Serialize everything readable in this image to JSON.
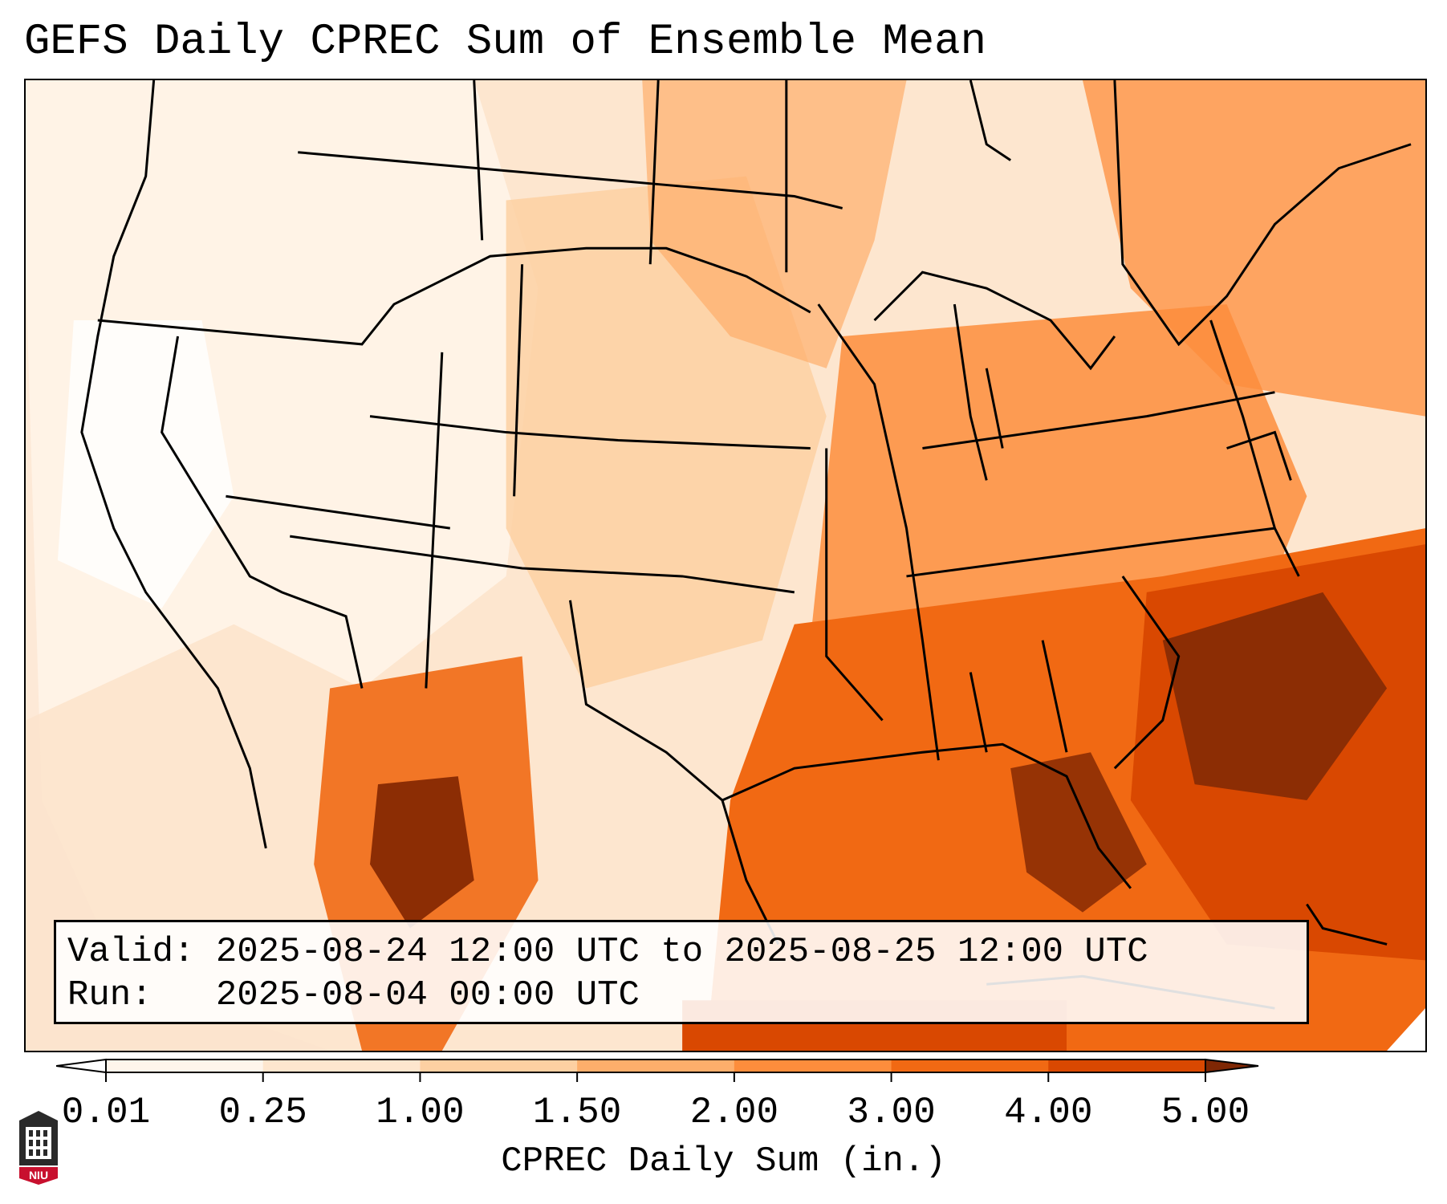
{
  "title": "GEFS Daily CPREC Sum of Ensemble Mean",
  "info": {
    "valid_label": "Valid:",
    "valid_value": "2025-08-24 12:00 UTC to 2025-08-25 12:00 UTC",
    "run_label": "Run:",
    "run_value": "2025-08-04 00:00 UTC"
  },
  "colorbar": {
    "label": "CPREC Daily Sum (in.)",
    "ticks": [
      "0.01",
      "0.25",
      "1.00",
      "1.50",
      "2.00",
      "3.00",
      "4.00",
      "5.00"
    ],
    "colors": [
      "#fff5eb",
      "#fee6ce",
      "#fdd0a2",
      "#fdae6b",
      "#fd8d3c",
      "#f16913",
      "#d94801",
      "#8c2d04"
    ],
    "under_color": "#ffffff",
    "over_color": "#7f2704"
  },
  "logo": {
    "text": "NIU",
    "color": "#c8102e"
  },
  "map": {
    "projection": "Lambert conformal",
    "region": "Continental United States"
  }
}
